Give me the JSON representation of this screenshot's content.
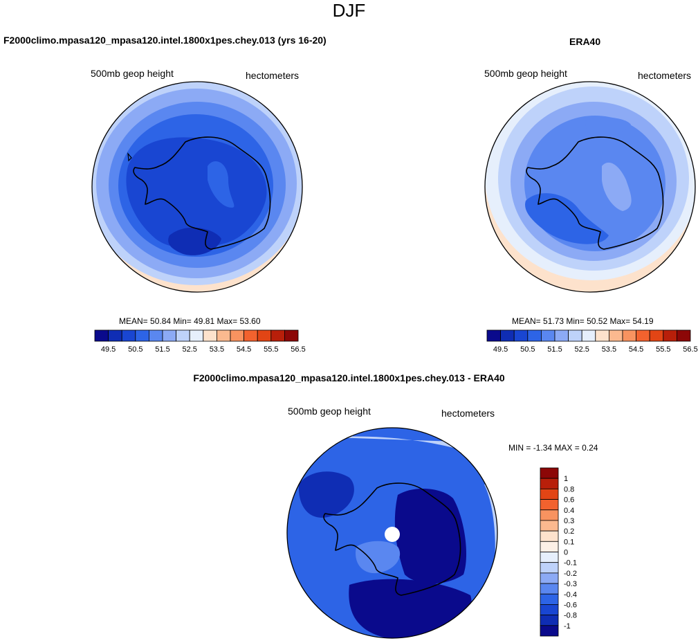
{
  "page": {
    "title": "DJF"
  },
  "panels": {
    "model": {
      "title": "F2000climo.mpasa120_mpasa120.intel.1800x1pes.chey.013 (yrs 16-20)",
      "left_label": "500mb geop height",
      "right_label": "hectometers",
      "stats": {
        "mean_label": "MEAN=",
        "mean": "50.84",
        "min_label": "Min=",
        "min": "49.81",
        "max_label": "Max=",
        "max": "53.60"
      }
    },
    "obs": {
      "title": "ERA40",
      "left_label": "500mb geop height",
      "right_label": "hectometers",
      "stats": {
        "mean_label": "MEAN=",
        "mean": "51.73",
        "min_label": "Min=",
        "min": "50.52",
        "max_label": "Max=",
        "max": "54.19"
      }
    },
    "diff": {
      "title": "F2000climo.mpasa120_mpasa120.intel.1800x1pes.chey.013 - ERA40",
      "left_label": "500mb geop height",
      "right_label": "hectometers",
      "stats": {
        "min_label": "MIN =",
        "min": "-1.34",
        "max_label": "MAX =",
        "max": "0.24"
      }
    }
  },
  "chart_data": [
    {
      "type": "heatmap",
      "projection": "south-polar-stereographic",
      "title": "F2000climo.mpasa120_mpasa120.intel.1800x1pes.chey.013 (yrs 16-20)",
      "variable": "500mb geop height",
      "units": "hectometers",
      "stats": {
        "mean": 50.84,
        "min": 49.81,
        "max": 53.6
      },
      "colorbar": {
        "orientation": "horizontal",
        "levels": [
          49.5,
          50,
          50.5,
          51,
          51.5,
          52,
          52.5,
          53,
          53.5,
          54,
          54.5,
          55,
          55.5,
          56,
          56.5
        ],
        "tick_labels": [
          "49.5",
          "50.5",
          "51.5",
          "52.5",
          "53.5",
          "54.5",
          "55.5",
          "56.5"
        ],
        "colors": [
          "#0a0a8c",
          "#0f2db4",
          "#1946d2",
          "#2d64e6",
          "#5a87f0",
          "#8caaf5",
          "#bed2fa",
          "#e6effc",
          "#fde2cc",
          "#fbb98f",
          "#f89360",
          "#f2622e",
          "#e24515",
          "#b81f0a",
          "#8c0707"
        ]
      }
    },
    {
      "type": "heatmap",
      "projection": "south-polar-stereographic",
      "title": "ERA40",
      "variable": "500mb geop height",
      "units": "hectometers",
      "stats": {
        "mean": 51.73,
        "min": 50.52,
        "max": 54.19
      },
      "colorbar": {
        "orientation": "horizontal",
        "levels": [
          49.5,
          50,
          50.5,
          51,
          51.5,
          52,
          52.5,
          53,
          53.5,
          54,
          54.5,
          55,
          55.5,
          56,
          56.5
        ],
        "tick_labels": [
          "49.5",
          "50.5",
          "51.5",
          "52.5",
          "53.5",
          "54.5",
          "55.5",
          "56.5"
        ],
        "colors": [
          "#0a0a8c",
          "#0f2db4",
          "#1946d2",
          "#2d64e6",
          "#5a87f0",
          "#8caaf5",
          "#bed2fa",
          "#e6effc",
          "#fde2cc",
          "#fbb98f",
          "#f89360",
          "#f2622e",
          "#e24515",
          "#b81f0a",
          "#8c0707"
        ]
      }
    },
    {
      "type": "heatmap",
      "projection": "south-polar-stereographic",
      "title": "F2000climo.mpasa120_mpasa120.intel.1800x1pes.chey.013 - ERA40",
      "variable": "500mb geop height",
      "units": "hectometers",
      "stats": {
        "min": -1.34,
        "max": 0.24
      },
      "colorbar": {
        "orientation": "vertical",
        "tick_labels": [
          "1",
          "0.8",
          "0.6",
          "0.4",
          "0.3",
          "0.2",
          "0.1",
          "0",
          "-0.1",
          "-0.2",
          "-0.3",
          "-0.4",
          "-0.6",
          "-0.8",
          "-1"
        ],
        "colors": [
          "#8c0707",
          "#b81f0a",
          "#e24515",
          "#f2622e",
          "#f89360",
          "#fbb98f",
          "#fde2cc",
          "#fdf0e6",
          "#e6effc",
          "#bed2fa",
          "#8caaf5",
          "#5a87f0",
          "#2d64e6",
          "#1946d2",
          "#0f2db4",
          "#0a0a8c"
        ]
      }
    }
  ]
}
